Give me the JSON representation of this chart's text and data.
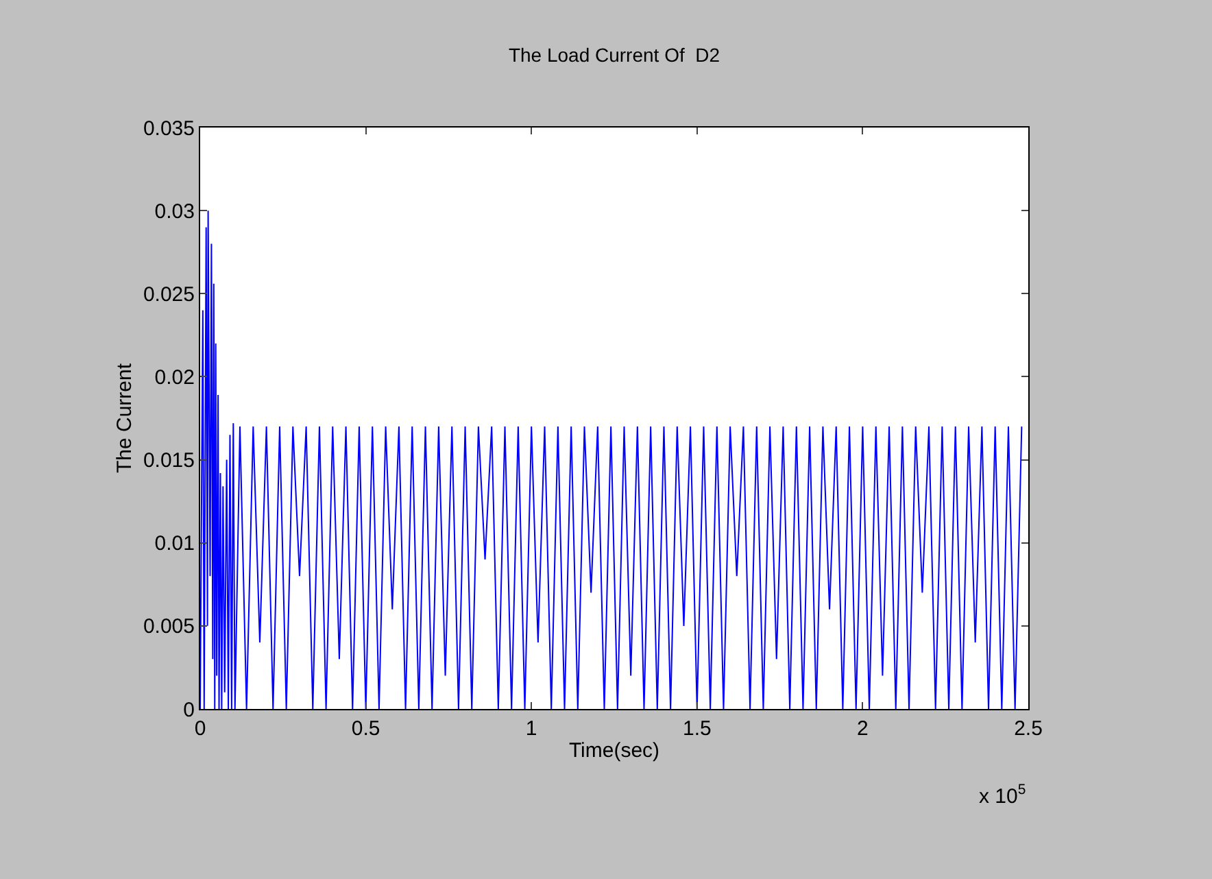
{
  "chart_data": {
    "type": "line",
    "title": "The Load Current Of  D2",
    "xlabel": "Time(sec)",
    "ylabel": "The Current",
    "annotations": [
      "x 10$^{5}$"
    ],
    "xlim": [
      0,
      2.5
    ],
    "xticks": [
      0,
      0.5,
      1,
      1.5,
      2,
      2.5
    ],
    "ylim": [
      0,
      0.035
    ],
    "yticks": [
      0,
      0.005,
      0.01,
      0.015,
      0.02,
      0.025,
      0.03,
      0.035
    ],
    "marker": "none",
    "line_style": "solid",
    "series": [
      {
        "color": "#0000ff",
        "x": [
          0,
          0.008,
          0.012,
          0.018,
          0.022,
          0.024,
          0.03,
          0.034,
          0.038,
          0.041,
          0.044,
          0.047,
          0.05,
          0.054,
          0.057,
          0.061,
          0.065,
          0.069,
          0.074,
          0.08,
          0.085,
          0.09,
          0.095,
          0.1,
          0.105,
          0.12,
          0.14,
          0.16,
          0.18,
          0.2,
          0.22,
          0.24,
          0.26,
          0.28,
          0.3,
          0.32,
          0.34,
          0.36,
          0.38,
          0.4,
          0.42,
          0.44,
          0.46,
          0.48,
          0.5,
          0.52,
          0.54,
          0.56,
          0.58,
          0.6,
          0.62,
          0.64,
          0.66,
          0.68,
          0.7,
          0.72,
          0.74,
          0.76,
          0.78,
          0.8,
          0.82,
          0.84,
          0.86,
          0.88,
          0.9,
          0.92,
          0.94,
          0.96,
          0.98,
          1.0,
          1.02,
          1.04,
          1.06,
          1.08,
          1.1,
          1.12,
          1.14,
          1.16,
          1.18,
          1.2,
          1.22,
          1.24,
          1.26,
          1.28,
          1.3,
          1.32,
          1.34,
          1.36,
          1.38,
          1.4,
          1.42,
          1.44,
          1.46,
          1.48,
          1.5,
          1.52,
          1.54,
          1.56,
          1.58,
          1.6,
          1.62,
          1.64,
          1.66,
          1.68,
          1.7,
          1.72,
          1.74,
          1.76,
          1.78,
          1.8,
          1.82,
          1.84,
          1.86,
          1.88,
          1.9,
          1.92,
          1.94,
          1.96,
          1.98,
          2.0,
          2.02,
          2.04,
          2.06,
          2.08,
          2.1,
          2.12,
          2.14,
          2.16,
          2.18,
          2.2,
          2.22,
          2.24,
          2.26,
          2.28,
          2.3,
          2.32,
          2.34,
          2.36,
          2.38,
          2.4,
          2.42,
          2.44,
          2.46,
          2.48
        ],
        "values": [
          0,
          0.024,
          0,
          0.029,
          0.005,
          0.03,
          0.008,
          0.028,
          0.003,
          0.0256,
          0,
          0.022,
          0.002,
          0.0189,
          0,
          0.0142,
          0,
          0.0134,
          0.001,
          0.015,
          0,
          0.0165,
          0,
          0.0172,
          0,
          0.017,
          0,
          0.017,
          0.004,
          0.017,
          0,
          0.017,
          0,
          0.017,
          0.008,
          0.017,
          0,
          0.017,
          0,
          0.017,
          0.003,
          0.017,
          0,
          0.017,
          0,
          0.017,
          0,
          0.017,
          0.006,
          0.017,
          0,
          0.017,
          0,
          0.017,
          0,
          0.017,
          0.002,
          0.017,
          0,
          0.017,
          0,
          0.017,
          0.009,
          0.017,
          0,
          0.017,
          0,
          0.017,
          0,
          0.017,
          0.004,
          0.017,
          0,
          0.017,
          0,
          0.017,
          0,
          0.017,
          0.007,
          0.017,
          0,
          0.017,
          0,
          0.017,
          0.002,
          0.017,
          0,
          0.017,
          0,
          0.017,
          0,
          0.017,
          0.005,
          0.017,
          0,
          0.017,
          0,
          0.017,
          0,
          0.017,
          0.008,
          0.017,
          0,
          0.017,
          0,
          0.017,
          0.003,
          0.017,
          0,
          0.017,
          0,
          0.017,
          0,
          0.017,
          0.006,
          0.017,
          0,
          0.017,
          0,
          0.017,
          0,
          0.017,
          0.002,
          0.017,
          0,
          0.017,
          0,
          0.017,
          0.007,
          0.017,
          0,
          0.017,
          0,
          0.017,
          0,
          0.017,
          0.004,
          0.017,
          0,
          0.017,
          0,
          0.017,
          0,
          0.017
        ]
      }
    ]
  }
}
